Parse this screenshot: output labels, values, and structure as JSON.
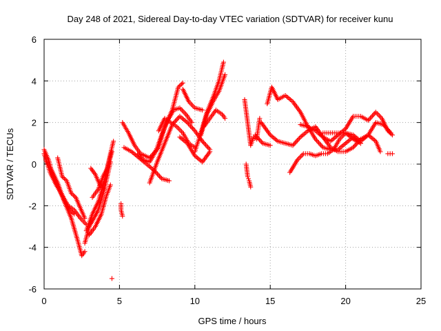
{
  "chart_data": {
    "type": "scatter",
    "title": "Day 248 of 2021, Sidereal Day-to-day VTEC variation (SDTVAR) for receiver kunu",
    "xlabel": "GPS time / hours",
    "ylabel": "SDTVAR / TECUs",
    "xlim": [
      0,
      25
    ],
    "ylim": [
      -6,
      6
    ],
    "x_ticks": [
      0,
      5,
      10,
      15,
      20,
      25
    ],
    "y_ticks": [
      -6,
      -4,
      -2,
      0,
      2,
      4,
      6
    ],
    "x_tick_labels": [
      "0",
      "5",
      "10",
      "15",
      "20",
      "25"
    ],
    "y_tick_labels": [
      "-6",
      "-4",
      "-2",
      "0",
      "2",
      "4",
      "6"
    ],
    "grid": true,
    "legend": "none",
    "marker": "+",
    "color": "#ff0000",
    "series": [
      {
        "x": [
          0.0,
          0.3,
          0.6,
          1.0,
          1.4,
          1.8,
          2.2,
          2.5,
          2.7
        ],
        "y": [
          0.7,
          0.2,
          -0.6,
          -1.2,
          -1.9,
          -2.6,
          -3.6,
          -4.4,
          -4.2
        ]
      },
      {
        "x": [
          0.0,
          0.4,
          0.8,
          1.2,
          1.6,
          2.0,
          2.4,
          2.8
        ],
        "y": [
          0.5,
          -0.4,
          -1.0,
          -1.5,
          -2.0,
          -2.2,
          -2.6,
          -2.9
        ]
      },
      {
        "x": [
          0.1,
          0.5,
          0.9,
          1.3,
          1.7,
          2.0
        ],
        "y": [
          0.2,
          -0.3,
          -0.9,
          -1.7,
          -2.2,
          -2.4
        ]
      },
      {
        "x": [
          0.9,
          1.2,
          1.5,
          1.8,
          2.1,
          2.4,
          2.7
        ],
        "y": [
          0.3,
          -0.6,
          -0.8,
          -1.4,
          -1.6,
          -2.1,
          -2.6
        ]
      },
      {
        "x": [
          2.7,
          3.0,
          3.3,
          3.6,
          4.0,
          4.4
        ],
        "y": [
          -3.8,
          -3.0,
          -2.6,
          -2.2,
          -1.2,
          0.1
        ]
      },
      {
        "x": [
          2.8,
          3.2,
          3.6,
          4.0,
          4.4,
          4.6
        ],
        "y": [
          -3.2,
          -2.4,
          -1.8,
          -0.8,
          0.5,
          1.1
        ]
      },
      {
        "x": [
          3.0,
          3.4,
          3.8,
          4.1,
          4.4
        ],
        "y": [
          -3.4,
          -3.0,
          -2.4,
          -1.6,
          -1.0
        ]
      },
      {
        "x": [
          3.2,
          3.6,
          3.9,
          4.2,
          4.5
        ],
        "y": [
          -1.6,
          -1.2,
          -0.6,
          -0.2,
          0.6
        ]
      },
      {
        "x": [
          3.1,
          3.4,
          3.7,
          4.0
        ],
        "y": [
          -0.2,
          -0.5,
          -1.0,
          -1.2
        ]
      },
      {
        "x": [
          4.5
        ],
        "y": [
          -5.5
        ]
      },
      {
        "x": [
          5.1,
          5.1,
          5.2
        ],
        "y": [
          -1.9,
          -2.2,
          -2.5
        ]
      },
      {
        "x": [
          5.2,
          5.6,
          6.0,
          6.4,
          7.0,
          7.6,
          8.0,
          8.5,
          8.9,
          9.2
        ],
        "y": [
          2.0,
          1.5,
          0.9,
          0.5,
          0.3,
          0.8,
          1.8,
          2.6,
          3.7,
          3.9
        ]
      },
      {
        "x": [
          9.2,
          9.6,
          10.0,
          10.5
        ],
        "y": [
          3.6,
          3.0,
          2.7,
          2.6
        ]
      },
      {
        "x": [
          5.3,
          5.8,
          6.3,
          6.8,
          7.3,
          7.8,
          8.3
        ],
        "y": [
          0.8,
          0.6,
          0.3,
          0.0,
          -0.3,
          -0.7,
          -0.8
        ]
      },
      {
        "x": [
          6.2,
          6.6,
          7.0,
          7.4,
          7.8,
          8.2,
          8.6,
          9.0,
          9.4,
          9.8
        ],
        "y": [
          0.5,
          0.2,
          0.1,
          0.6,
          1.4,
          2.1,
          2.6,
          2.7,
          2.4,
          2.0
        ]
      },
      {
        "x": [
          7.0,
          7.5,
          8.0,
          8.5,
          9.0,
          9.5,
          10.0,
          10.5,
          11.0
        ],
        "y": [
          -0.9,
          0.1,
          1.0,
          1.9,
          2.3,
          2.0,
          1.6,
          1.1,
          0.7
        ]
      },
      {
        "x": [
          7.6,
          8.0,
          8.4,
          8.8,
          9.2,
          9.6,
          10.0
        ],
        "y": [
          1.6,
          2.2,
          2.0,
          1.8,
          1.5,
          1.0,
          0.8
        ]
      },
      {
        "x": [
          9.0,
          9.5,
          10.0,
          10.5,
          11.0
        ],
        "y": [
          1.3,
          1.0,
          0.4,
          0.1,
          0.6
        ]
      },
      {
        "x": [
          10.0,
          10.4,
          10.8,
          11.2,
          11.6,
          11.9
        ],
        "y": [
          0.6,
          1.5,
          2.5,
          3.2,
          4.0,
          4.9
        ]
      },
      {
        "x": [
          10.4,
          10.8,
          11.2,
          11.6,
          12.0
        ],
        "y": [
          1.4,
          2.4,
          3.0,
          3.5,
          4.3
        ]
      },
      {
        "x": [
          10.6,
          11.0,
          11.4,
          11.8,
          12.0
        ],
        "y": [
          1.8,
          2.2,
          2.6,
          2.4,
          2.2
        ]
      },
      {
        "x": [
          13.3,
          13.5,
          13.7,
          13.9,
          14.1,
          14.3
        ],
        "y": [
          3.1,
          2.0,
          0.9,
          1.3,
          1.2,
          2.2
        ]
      },
      {
        "x": [
          13.4,
          13.5,
          13.6,
          13.7
        ],
        "y": [
          0.0,
          -0.6,
          -0.8,
          -1.1
        ]
      },
      {
        "x": [
          14.4,
          15.0,
          15.5,
          16.0,
          16.5,
          17.0,
          17.5,
          18.0,
          18.5,
          19.0,
          19.5,
          20.0,
          20.5,
          21.0,
          21.5,
          22.0,
          22.3
        ],
        "y": [
          2.0,
          1.4,
          1.1,
          1.0,
          0.9,
          1.3,
          1.6,
          1.8,
          1.3,
          0.8,
          0.6,
          0.6,
          0.8,
          1.2,
          1.4,
          1.1,
          0.6
        ]
      },
      {
        "x": [
          14.0,
          14.5,
          15.0
        ],
        "y": [
          1.4,
          1.0,
          0.9
        ]
      },
      {
        "x": [
          14.8,
          15.1,
          15.5,
          16.0,
          16.5,
          17.0,
          17.5,
          18.0,
          18.5,
          19.0,
          19.5,
          20.0,
          20.5,
          21.0
        ],
        "y": [
          2.9,
          3.7,
          3.1,
          3.3,
          3.0,
          2.5,
          1.8,
          1.2,
          0.8,
          0.7,
          0.7,
          1.0,
          1.3,
          1.0
        ]
      },
      {
        "x": [
          16.3,
          16.8,
          17.2,
          17.6,
          18.0,
          18.4,
          18.8,
          19.2,
          19.6,
          20.0,
          20.5,
          21.0,
          21.5,
          22.0,
          22.5,
          23.0
        ],
        "y": [
          -0.4,
          0.2,
          0.5,
          0.5,
          0.4,
          0.5,
          0.5,
          0.7,
          1.2,
          1.5,
          1.4,
          1.1,
          1.4,
          2.0,
          1.9,
          1.5
        ]
      },
      {
        "x": [
          17.0,
          17.5,
          18.0,
          18.5,
          19.0,
          19.5,
          20.0,
          20.5,
          21.0,
          21.5,
          22.0,
          22.4,
          22.8,
          23.1
        ],
        "y": [
          1.9,
          1.8,
          1.6,
          1.3,
          1.1,
          1.4,
          1.7,
          2.3,
          2.3,
          2.1,
          2.5,
          2.2,
          1.6,
          1.4
        ]
      },
      {
        "x": [
          18.5,
          19.0,
          19.5,
          20.0,
          20.5,
          21.0
        ],
        "y": [
          1.5,
          1.5,
          1.5,
          1.5,
          1.2,
          1.0
        ]
      },
      {
        "x": [
          22.8,
          23.1
        ],
        "y": [
          0.5,
          0.5
        ]
      }
    ]
  }
}
